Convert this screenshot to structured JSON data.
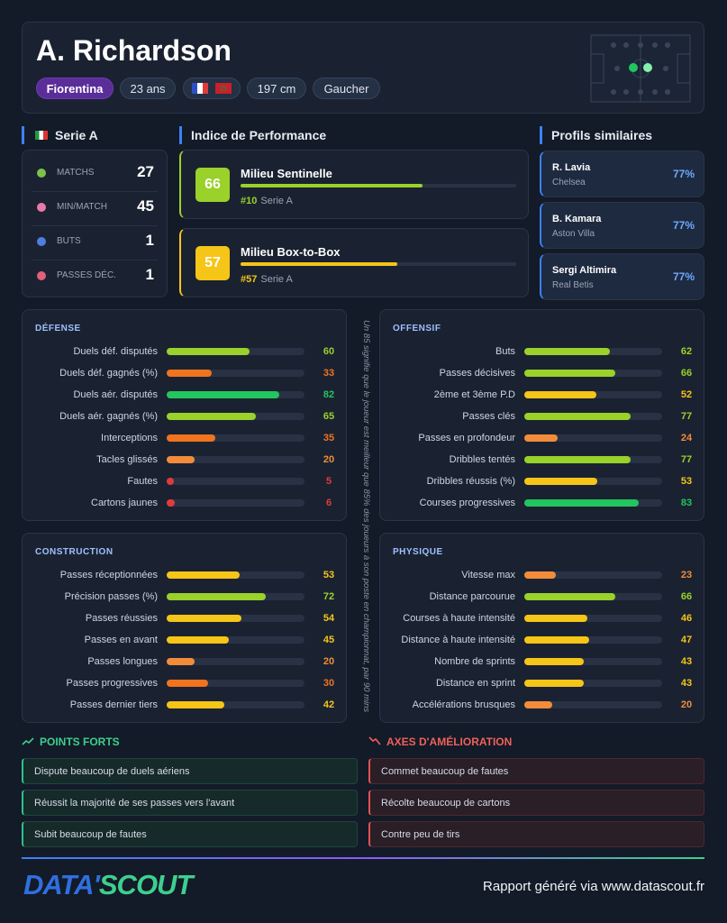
{
  "header": {
    "name": "A. Richardson",
    "team": "Fiorentina",
    "age": "23 ans",
    "height": "197 cm",
    "foot": "Gaucher"
  },
  "league": {
    "title": "Serie A",
    "stats": [
      {
        "label": "MATCHS",
        "value": 27
      },
      {
        "label": "MIN/MATCH",
        "value": 45
      },
      {
        "label": "BUTS",
        "value": 1
      },
      {
        "label": "PASSES DÉC.",
        "value": 1
      }
    ]
  },
  "performance": {
    "title": "Indice de Performance",
    "roles": [
      {
        "score": 66,
        "name": "Milieu Sentinelle",
        "rank": "#10",
        "league": "Serie A"
      },
      {
        "score": 57,
        "name": "Milieu Box-to-Box",
        "rank": "#57",
        "league": "Serie A"
      }
    ]
  },
  "similar": {
    "title": "Profils similaires",
    "players": [
      {
        "name": "R. Lavia",
        "club": "Chelsea",
        "match": "77%"
      },
      {
        "name": "B. Kamara",
        "club": "Aston Villa",
        "match": "77%"
      },
      {
        "name": "Sergi Altimira",
        "club": "Real Betis",
        "match": "77%"
      }
    ]
  },
  "sections": [
    {
      "title": "DÉFENSE",
      "stats": [
        {
          "label": "Duels déf. disputés",
          "value": 60
        },
        {
          "label": "Duels déf. gagnés (%)",
          "value": 33
        },
        {
          "label": "Duels aér. disputés",
          "value": 82
        },
        {
          "label": "Duels aér. gagnés (%)",
          "value": 65
        },
        {
          "label": "Interceptions",
          "value": 35
        },
        {
          "label": "Tacles glissés",
          "value": 20
        },
        {
          "label": "Fautes",
          "value": 5
        },
        {
          "label": "Cartons jaunes",
          "value": 6
        }
      ]
    },
    {
      "title": "OFFENSIF",
      "stats": [
        {
          "label": "Buts",
          "value": 62
        },
        {
          "label": "Passes décisives",
          "value": 66
        },
        {
          "label": "2ème et 3ème P.D",
          "value": 52
        },
        {
          "label": "Passes clés",
          "value": 77
        },
        {
          "label": "Passes en profondeur",
          "value": 24
        },
        {
          "label": "Dribbles tentés",
          "value": 77
        },
        {
          "label": "Dribbles réussis (%)",
          "value": 53
        },
        {
          "label": "Courses progressives",
          "value": 83
        }
      ]
    },
    {
      "title": "CONSTRUCTION",
      "stats": [
        {
          "label": "Passes réceptionnées",
          "value": 53
        },
        {
          "label": "Précision passes (%)",
          "value": 72
        },
        {
          "label": "Passes réussies",
          "value": 54
        },
        {
          "label": "Passes en avant",
          "value": 45
        },
        {
          "label": "Passes longues",
          "value": 20
        },
        {
          "label": "Passes progressives",
          "value": 30
        },
        {
          "label": "Passes dernier tiers",
          "value": 42
        }
      ]
    },
    {
      "title": "PHYSIQUE",
      "stats": [
        {
          "label": "Vitesse max",
          "value": 23
        },
        {
          "label": "Distance parcourue",
          "value": 66
        },
        {
          "label": "Courses à haute intensité",
          "value": 46
        },
        {
          "label": "Distance à haute intensité",
          "value": 47
        },
        {
          "label": "Nombre de sprints",
          "value": 43
        },
        {
          "label": "Distance en sprint",
          "value": 43
        },
        {
          "label": "Accélérations brusques",
          "value": 20
        }
      ]
    }
  ],
  "note": "Un 85 signifie que le joueur est meilleur que 85% des joueurs à son poste en championnat, par 90 mins",
  "strengths": {
    "title": "POINTS FORTS",
    "items": [
      "Dispute beaucoup de duels aériens",
      "Réussit la majorité de ses passes vers l'avant",
      "Subit beaucoup de fautes"
    ]
  },
  "improvements": {
    "title": "AXES D'AMÉLIORATION",
    "items": [
      "Commet beaucoup de fautes",
      "Récolte beaucoup de cartons",
      "Contre peu de tirs"
    ]
  },
  "footer": {
    "logo_left": "DATA'",
    "logo_right": "SCOUT",
    "text": "Rapport généré via www.datascout.fr"
  }
}
